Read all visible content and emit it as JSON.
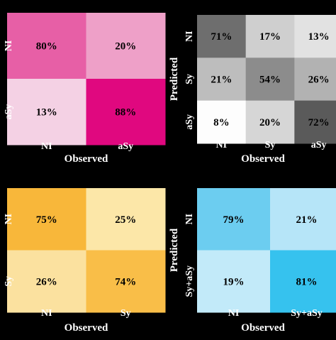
{
  "chart_data": [
    {
      "type": "heatmap",
      "x_categories": [
        "NI",
        "aSy"
      ],
      "y_categories": [
        "NI",
        "aSy"
      ],
      "values": [
        [
          80,
          20
        ],
        [
          13,
          88
        ]
      ],
      "cell_labels": [
        [
          "80%",
          "20%"
        ],
        [
          "13%",
          "88%"
        ]
      ],
      "xlabel": "Observed",
      "ylabel": "",
      "colors": [
        [
          "#e75fa6",
          "#eea0c8"
        ],
        [
          "#f4d1e4",
          "#e0087f"
        ]
      ],
      "text_colors": [
        [
          "#000000",
          "#000000"
        ],
        [
          "#000000",
          "#000000"
        ]
      ]
    },
    {
      "type": "heatmap",
      "x_categories": [
        "NI",
        "Sy",
        "aSy"
      ],
      "y_categories": [
        "NI",
        "Sy",
        "aSy"
      ],
      "values": [
        [
          71,
          17,
          13
        ],
        [
          21,
          54,
          26
        ],
        [
          8,
          20,
          72
        ]
      ],
      "cell_labels": [
        [
          "71%",
          "17%",
          "13%"
        ],
        [
          "21%",
          "54%",
          "26%"
        ],
        [
          "8%",
          "20%",
          "72%"
        ]
      ],
      "xlabel": "Observed",
      "ylabel": "Predicted",
      "colors": [
        [
          "#6e6e6e",
          "#cfcfcf",
          "#e2e2e2"
        ],
        [
          "#bdbdbd",
          "#8c8c8c",
          "#b2b2b2"
        ],
        [
          "#fdfdfd",
          "#d6d6d6",
          "#5a5a5a"
        ]
      ],
      "text_colors": [
        [
          "#000000",
          "#000000",
          "#000000"
        ],
        [
          "#000000",
          "#000000",
          "#000000"
        ],
        [
          "#000000",
          "#000000",
          "#000000"
        ]
      ]
    },
    {
      "type": "heatmap",
      "x_categories": [
        "NI",
        "Sy"
      ],
      "y_categories": [
        "NI",
        "Sy"
      ],
      "values": [
        [
          75,
          25
        ],
        [
          26,
          74
        ]
      ],
      "cell_labels": [
        [
          "75%",
          "25%"
        ],
        [
          "26%",
          "74%"
        ]
      ],
      "xlabel": "Observed",
      "ylabel": "",
      "colors": [
        [
          "#f8b73a",
          "#fce7a8"
        ],
        [
          "#fbe19f",
          "#f9be48"
        ]
      ],
      "text_colors": [
        [
          "#000000",
          "#000000"
        ],
        [
          "#000000",
          "#000000"
        ]
      ]
    },
    {
      "type": "heatmap",
      "x_categories": [
        "NI",
        "Sy+aSy"
      ],
      "y_categories": [
        "NI",
        "Sy+aSy"
      ],
      "values": [
        [
          79,
          21
        ],
        [
          19,
          81
        ]
      ],
      "cell_labels": [
        [
          "79%",
          "21%"
        ],
        [
          "19%",
          "81%"
        ]
      ],
      "xlabel": "Observed",
      "ylabel": "Predicted",
      "colors": [
        [
          "#6ccdf0",
          "#b6e5f8"
        ],
        [
          "#c2eaf9",
          "#36c2ee"
        ]
      ],
      "text_colors": [
        [
          "#000000",
          "#000000"
        ],
        [
          "#000000",
          "#000000"
        ]
      ]
    }
  ],
  "colors": {
    "background": "#000000",
    "label_text": "#ffffff",
    "cell_text": "#000000"
  }
}
